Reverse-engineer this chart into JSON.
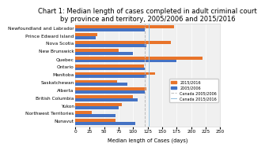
{
  "title": "Chart 1: Median length of cases completed in adult criminal court\nby province and territory, 2005/2006 and 2015/2016",
  "xlabel": "Median length of Cases (days)",
  "provinces": [
    "Newfoundland and Labrador",
    "Prince Edward Island",
    "Nova Scotia",
    "New Brunswick",
    "Quebec",
    "Ontario",
    "Manitoba",
    "Saskatchewan",
    "Alberta",
    "British Columbia",
    "Yukon",
    "Northwest Territories",
    "Nunavut"
  ],
  "values_2015": [
    170,
    38,
    165,
    75,
    220,
    118,
    138,
    72,
    123,
    100,
    80,
    28,
    70
  ],
  "values_2005": [
    120,
    35,
    122,
    100,
    175,
    120,
    122,
    90,
    120,
    107,
    75,
    70,
    103
  ],
  "canada_2005": 120,
  "canada_2015": 127,
  "color_2015": "#E8742A",
  "color_2005": "#4472C4",
  "color_canada_2005": "#BBBBBB",
  "color_canada_2015": "#92BFDE",
  "xlim": [
    0,
    250
  ],
  "xticks": [
    0,
    25,
    50,
    75,
    100,
    125,
    150,
    175,
    200,
    225,
    250
  ],
  "legend_labels": [
    "2015/2016",
    "2005/2006",
    "Canada 2005/2006",
    "Canada 2015/2016"
  ],
  "background_color": "#FFFFFF",
  "plot_bg_color": "#F0F0F0",
  "title_fontsize": 6.0,
  "label_fontsize": 4.8,
  "tick_fontsize": 4.2,
  "ytick_fontsize": 4.2
}
